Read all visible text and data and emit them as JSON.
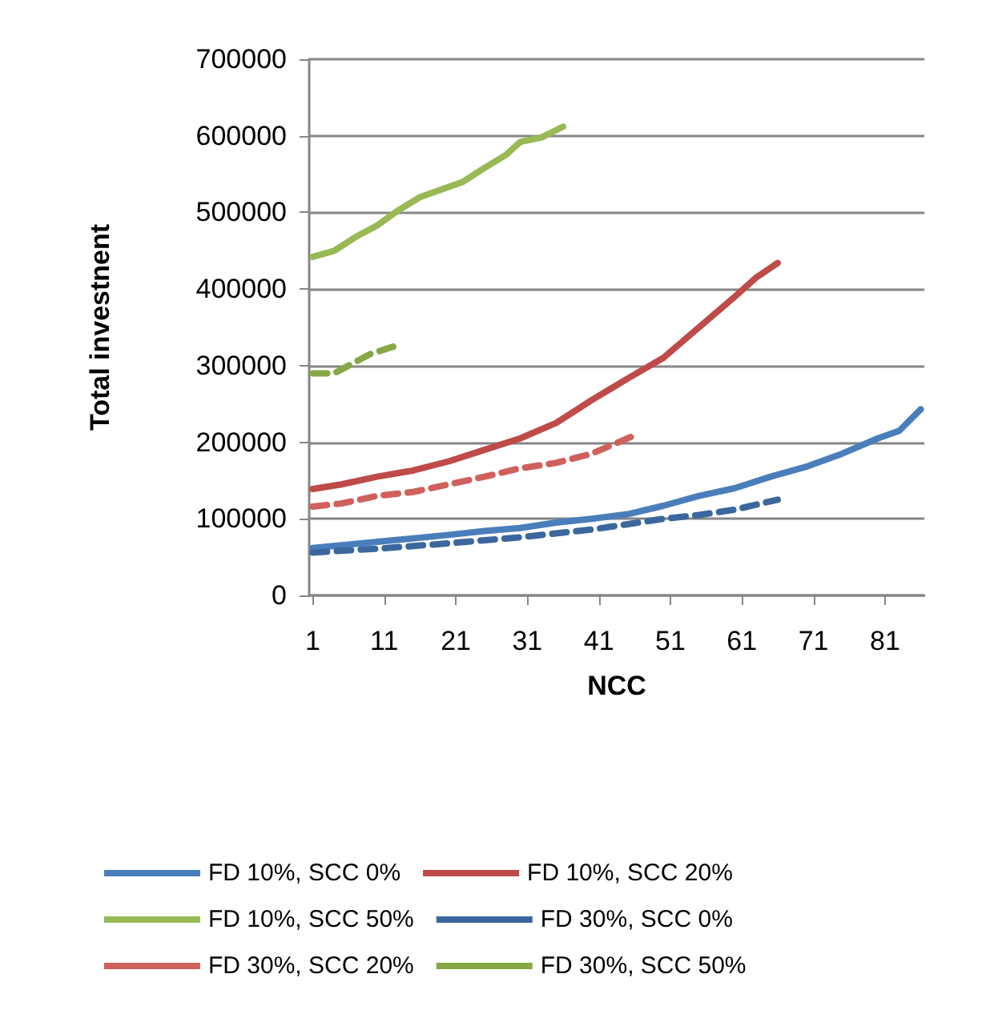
{
  "chart_data": {
    "type": "line",
    "xlabel": "NCC",
    "ylabel": "Total investnent",
    "xlim": [
      0.5,
      86.5
    ],
    "xticks": [
      1,
      11,
      21,
      31,
      41,
      51,
      61,
      71,
      81
    ],
    "ylim": [
      0,
      700000
    ],
    "yticks": [
      0,
      100000,
      200000,
      300000,
      400000,
      500000,
      600000,
      700000
    ],
    "grid": "y",
    "legend": "bottom",
    "marker": "none",
    "series": [
      {
        "name": "FD 10%, SCC 0%",
        "color": "#4a7ebb",
        "line_style": "solid",
        "x": [
          1,
          10,
          20,
          25,
          30,
          35,
          40,
          45,
          50,
          55,
          60,
          65,
          70,
          75,
          80,
          83,
          86
        ],
        "values": [
          62000,
          70000,
          79000,
          84000,
          88000,
          95000,
          100000,
          106000,
          117000,
          130000,
          140000,
          155000,
          168000,
          185000,
          205000,
          215000,
          243000
        ]
      },
      {
        "name": "FD 10%, SCC 20%",
        "color": "#be4b48",
        "line_style": "solid",
        "x": [
          1,
          5,
          10,
          15,
          20,
          25,
          30,
          35,
          40,
          45,
          50,
          55,
          60,
          63,
          66
        ],
        "values": [
          139000,
          145000,
          155000,
          163000,
          175000,
          190000,
          205000,
          225000,
          255000,
          283000,
          310000,
          350000,
          390000,
          415000,
          434000
        ]
      },
      {
        "name": "FD 10%, SCC 50%",
        "color": "#98b954",
        "line_style": "solid",
        "x": [
          1,
          4,
          7,
          10,
          13,
          16,
          19,
          22,
          25,
          28,
          30,
          33,
          36
        ],
        "values": [
          442000,
          450000,
          468000,
          483000,
          503000,
          520000,
          530000,
          540000,
          558000,
          575000,
          592000,
          598000,
          612000
        ]
      },
      {
        "name": "FD 30%, SCC 0%",
        "color": "#3b679e",
        "line_style": "dashed",
        "x": [
          1,
          10,
          20,
          30,
          40,
          50,
          55,
          60,
          66
        ],
        "values": [
          56000,
          61000,
          68000,
          76000,
          86000,
          100000,
          105000,
          112000,
          125000
        ]
      },
      {
        "name": "FD 30%, SCC 20%",
        "color": "#d0605c",
        "line_style": "dashed",
        "x": [
          1,
          5,
          10,
          15,
          20,
          25,
          30,
          35,
          40,
          46
        ],
        "values": [
          116000,
          120000,
          130000,
          135000,
          145000,
          155000,
          166000,
          173000,
          185000,
          209000
        ]
      },
      {
        "name": "FD 30%, SCC 50%",
        "color": "#86a846",
        "line_style": "dashed",
        "x": [
          1,
          4,
          6,
          9,
          13
        ],
        "values": [
          290000,
          290000,
          300000,
          315000,
          327000
        ]
      }
    ]
  }
}
